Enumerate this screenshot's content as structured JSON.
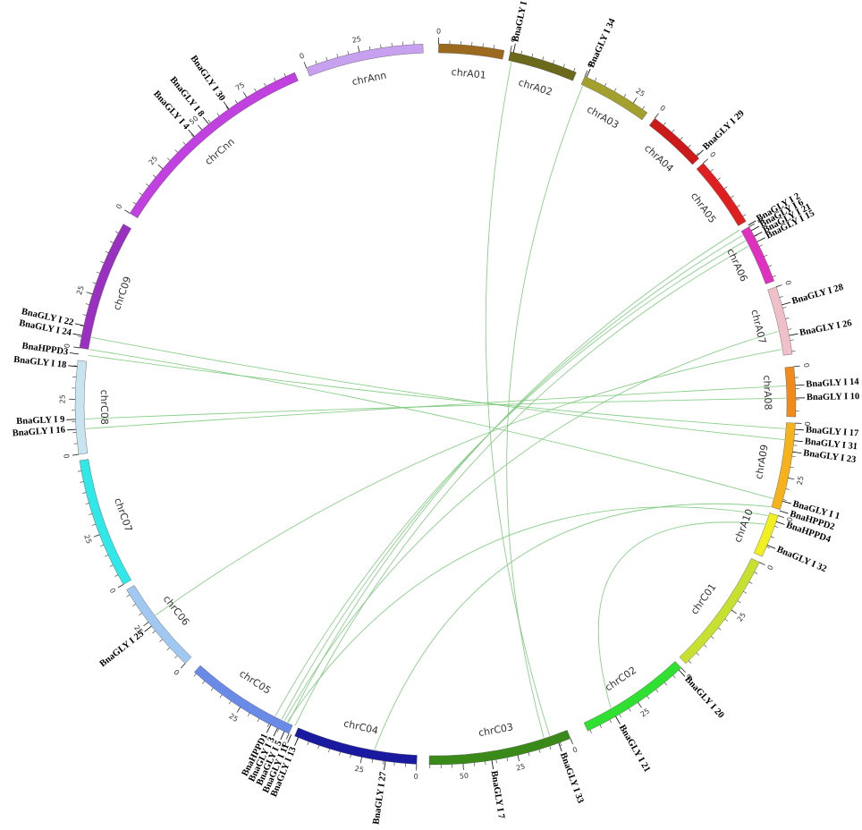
{
  "chromosomes": [
    {
      "label": "chrA01",
      "color": "#9b6a1e",
      "ticks": [
        "0"
      ]
    },
    {
      "label": "chrA02",
      "color": "#6b6a1c",
      "ticks": [
        "0"
      ]
    },
    {
      "label": "chrA03",
      "color": "#a3a02e",
      "ticks": [
        "0",
        "25"
      ]
    },
    {
      "label": "chrA04",
      "color": "#cc1a1a",
      "ticks": [
        "0"
      ]
    },
    {
      "label": "chrA05",
      "color": "#e02020",
      "ticks": [
        "0"
      ]
    },
    {
      "label": "chrA06",
      "color": "#e030c0",
      "ticks": [
        "0"
      ]
    },
    {
      "label": "chrA07",
      "color": "#f0c0c8",
      "ticks": [
        "0"
      ]
    },
    {
      "label": "chrA08",
      "color": "#f08a1a",
      "ticks": [
        "0"
      ]
    },
    {
      "label": "chrA09",
      "color": "#f5b21a",
      "ticks": [
        "0",
        "25"
      ]
    },
    {
      "label": "chrA10",
      "color": "#f0f020",
      "ticks": [
        "0"
      ]
    },
    {
      "label": "chrC01",
      "color": "#c8e030",
      "ticks": [
        "0",
        "25"
      ]
    },
    {
      "label": "chrC02",
      "color": "#30e030",
      "ticks": [
        "0",
        "25"
      ]
    },
    {
      "label": "chrC03",
      "color": "#3a8a1a",
      "ticks": [
        "0",
        "25",
        "50"
      ]
    },
    {
      "label": "chrC04",
      "color": "#1a1aa0",
      "ticks": [
        "0",
        "25"
      ]
    },
    {
      "label": "chrC05",
      "color": "#6a8ae8",
      "ticks": [
        "0",
        "25"
      ]
    },
    {
      "label": "chrC06",
      "color": "#a0c8f0",
      "ticks": [
        "0",
        "25"
      ]
    },
    {
      "label": "chrC07",
      "color": "#30e8e8",
      "ticks": [
        "0",
        "25"
      ]
    },
    {
      "label": "chrC08",
      "color": "#c8e4f0",
      "ticks": [
        "0",
        "25"
      ]
    },
    {
      "label": "chrC09",
      "color": "#9a30c0",
      "ticks": [
        "0",
        "25"
      ]
    },
    {
      "label": "chrCnn",
      "color": "#c040e0",
      "ticks": [
        "0",
        "25",
        "50",
        "75"
      ]
    },
    {
      "label": "chrAnn",
      "color": "#c8a0f0",
      "ticks": [
        "0",
        "25"
      ]
    }
  ],
  "genes": [
    {
      "label": "BnaGLY I 19"
    },
    {
      "label": "BnaGLY I 34"
    },
    {
      "label": "BnaGLY I 29"
    },
    {
      "label": "BnaGLY I 2"
    },
    {
      "label": "BnaGLY I 6"
    },
    {
      "label": "BnaGLY I 21"
    },
    {
      "label": "BnaGLY I 15"
    },
    {
      "label": "BnaGLY I 28"
    },
    {
      "label": "BnaGLY I 26"
    },
    {
      "label": "BnaGLY I 14"
    },
    {
      "label": "BnaGLY I 10"
    },
    {
      "label": "BnaGLY I 17"
    },
    {
      "label": "BnaGLY I 31"
    },
    {
      "label": "BnaGLY I 23"
    },
    {
      "label": "BnaGLY I 1"
    },
    {
      "label": "BnaHPPD2"
    },
    {
      "label": "BnaHPPD4"
    },
    {
      "label": "BnaGLY I 32"
    },
    {
      "label": "BnaGLY I 20"
    },
    {
      "label": "BnaGLY I 21"
    },
    {
      "label": "BnaGLY I 33"
    },
    {
      "label": "BnaGLY I 7"
    },
    {
      "label": "BnaGLY I 27"
    },
    {
      "label": "BnaGLY I 13"
    },
    {
      "label": "BnaGLY I 11"
    },
    {
      "label": "BnaGLY I 5"
    },
    {
      "label": "BnaGLY I 3"
    },
    {
      "label": "BnaHPPD1"
    },
    {
      "label": "BnaGLY I 25"
    },
    {
      "label": "BnaGLY I 16"
    },
    {
      "label": "BnaGLY I 9"
    },
    {
      "label": "BnaGLY I 18"
    },
    {
      "label": "BnaHPPD3"
    },
    {
      "label": "BnaGLY I 24"
    },
    {
      "label": "BnaGLY I 22"
    },
    {
      "label": "BnaGLY I 4"
    },
    {
      "label": "BnaGLY I 8"
    },
    {
      "label": "BnaGLY I 30"
    }
  ]
}
